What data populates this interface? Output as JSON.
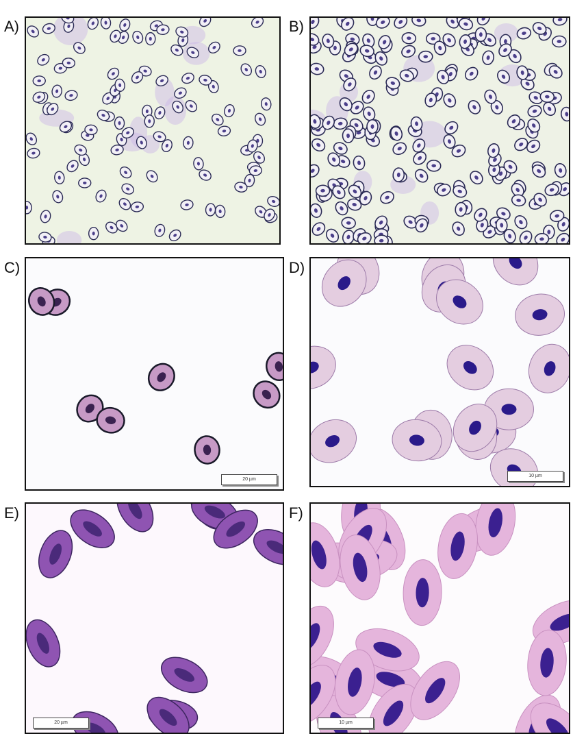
{
  "panels": [
    {
      "id": "A",
      "label": "A)",
      "background": "#eef3e4",
      "scale_bar": null
    },
    {
      "id": "B",
      "label": "B)",
      "background": "#eef2e6",
      "scale_bar": null
    },
    {
      "id": "C",
      "label": "C)",
      "background": "#fbfbfd",
      "scale_bar": "20 µm"
    },
    {
      "id": "D",
      "label": "D)",
      "background": "#fbfbfd",
      "scale_bar": "10 µm"
    },
    {
      "id": "E",
      "label": "E)",
      "background": "#fdf8fd",
      "scale_bar": "20 µm"
    },
    {
      "id": "F",
      "label": "F)",
      "background": "#fdfbfd",
      "scale_bar": "10 µm"
    }
  ]
}
